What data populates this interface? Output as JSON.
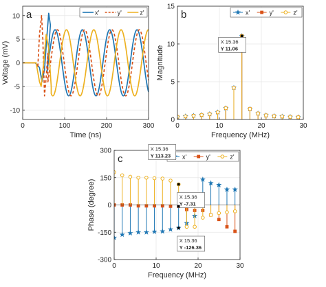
{
  "colors": {
    "x": "#1f77b4",
    "y": "#d95319",
    "z": "#edb120",
    "axis": "#262626",
    "grid": "#e6e6e6",
    "datatip": "#1a7bd6"
  },
  "chart_data": [
    {
      "type": "line",
      "panel_label": "a",
      "xlabel": "Time (ns)",
      "ylabel": "Voltage (mV)",
      "xlim": [
        0,
        300
      ],
      "ylim": [
        -12,
        12
      ],
      "xticks": [
        0,
        100,
        200,
        300
      ],
      "yticks": [
        -10,
        -5,
        0,
        5,
        10
      ],
      "grid": true,
      "legend": {
        "position": "top-right",
        "entries": [
          "x'",
          "y'",
          "z'"
        ]
      },
      "series": [
        {
          "name": "x'",
          "color": "#1f77b4",
          "dash": "solid",
          "start": 58,
          "period": 65.1,
          "amplitude": 7,
          "phase_deg": 23,
          "transient": [
            [
              0,
              0
            ],
            [
              30,
              0
            ],
            [
              40,
              -1
            ],
            [
              46,
              -4
            ],
            [
              52,
              -1.5
            ],
            [
              58,
              6
            ],
            [
              62,
              10.5
            ],
            [
              66,
              8
            ]
          ]
        },
        {
          "name": "y'",
          "color": "#d95319",
          "dash": "dashed",
          "start": 60,
          "period": 65.1,
          "amplitude": 7,
          "phase_deg": -7,
          "transient": [
            [
              0,
              0
            ],
            [
              30,
              0
            ],
            [
              36,
              -1
            ],
            [
              40,
              6
            ],
            [
              45,
              10
            ],
            [
              48,
              5
            ],
            [
              52,
              -7
            ],
            [
              56,
              -3
            ],
            [
              60,
              2
            ]
          ]
        },
        {
          "name": "z'",
          "color": "#edb120",
          "dash": "solid",
          "start": 68,
          "period": 65.1,
          "amplitude": 7,
          "phase_deg": -127,
          "transient": [
            [
              0,
              0
            ],
            [
              32,
              0
            ],
            [
              40,
              -4
            ],
            [
              44,
              -5
            ],
            [
              50,
              0
            ],
            [
              56,
              6
            ],
            [
              62,
              3
            ],
            [
              68,
              -5
            ]
          ]
        }
      ]
    },
    {
      "type": "stem",
      "panel_label": "b",
      "xlabel": "Frequency (MHz)",
      "ylabel": "Magnitude",
      "xlim": [
        0,
        30
      ],
      "ylim": [
        0,
        15
      ],
      "xticks": [
        0,
        10,
        20,
        30
      ],
      "yticks": [
        0,
        5,
        10,
        15
      ],
      "grid": true,
      "legend": {
        "position": "top-right",
        "entries": [
          "x'",
          "y'",
          "z'"
        ]
      },
      "x": [
        0,
        1.92,
        3.84,
        5.76,
        7.68,
        9.6,
        11.52,
        13.44,
        15.36,
        17.28,
        19.2,
        21.12,
        23.04,
        24.96,
        26.88,
        28.8
      ],
      "series": [
        {
          "name": "x'",
          "values": [
            0.35,
            0.42,
            0.5,
            0.6,
            0.72,
            0.95,
            1.5,
            4.2,
            11.06,
            1.4,
            0.8,
            0.55,
            0.45,
            0.4,
            0.35,
            0.3
          ]
        },
        {
          "name": "y'",
          "values": [
            0.35,
            0.42,
            0.5,
            0.6,
            0.72,
            0.95,
            1.5,
            4.2,
            11.06,
            1.4,
            0.8,
            0.55,
            0.45,
            0.4,
            0.35,
            0.3
          ]
        },
        {
          "name": "z'",
          "values": [
            0.35,
            0.42,
            0.5,
            0.6,
            0.72,
            0.95,
            1.5,
            4.2,
            11.06,
            1.4,
            0.8,
            0.55,
            0.45,
            0.4,
            0.35,
            0.3
          ]
        }
      ],
      "datatip": {
        "x": 15.36,
        "y": 11.06,
        "x_label": "X 15.36",
        "y_label": "Y 11.06"
      }
    },
    {
      "type": "stem",
      "panel_label": "c",
      "xlabel": "Frequency (MHz)",
      "ylabel": "Phase (degree)",
      "xlim": [
        0,
        30
      ],
      "ylim": [
        -300,
        300
      ],
      "xticks": [
        0,
        10,
        20,
        30
      ],
      "yticks": [
        -300,
        -150,
        0,
        150,
        300
      ],
      "grid": true,
      "legend": {
        "position": "top-right",
        "entries": [
          "x'",
          "y'",
          "z'"
        ]
      },
      "x": [
        0,
        1.92,
        3.84,
        5.76,
        7.68,
        9.6,
        11.52,
        13.44,
        15.36,
        17.28,
        19.2,
        21.12,
        23.04,
        24.96,
        26.88,
        28.8
      ],
      "series": [
        {
          "name": "x'",
          "values": [
            -180,
            -163,
            -155,
            -150,
            -150,
            -147,
            -145,
            -134,
            -126.36,
            -100,
            -60,
            140,
            120,
            110,
            85,
            85
          ]
        },
        {
          "name": "y'",
          "values": [
            0,
            0,
            0,
            -5,
            -5,
            -5,
            -5,
            -7,
            -7.31,
            -25,
            -30,
            -30,
            -55,
            -80,
            -120,
            -145
          ]
        },
        {
          "name": "z'",
          "values": [
            180,
            163,
            155,
            150,
            150,
            147,
            145,
            134,
            113.23,
            -120,
            -120,
            -70,
            -55,
            -45,
            -40,
            -35
          ]
        }
      ],
      "datatips": [
        {
          "x": 15.36,
          "y": 113.23,
          "x_label": "X 15.36",
          "y_label": "Y 113.23"
        },
        {
          "x": 15.36,
          "y": -7.31,
          "x_label": "X 15.36",
          "y_label": "Y -7.31"
        },
        {
          "x": 15.36,
          "y": -126.36,
          "x_label": "X 15.36",
          "y_label": "Y -126.36"
        }
      ]
    }
  ]
}
